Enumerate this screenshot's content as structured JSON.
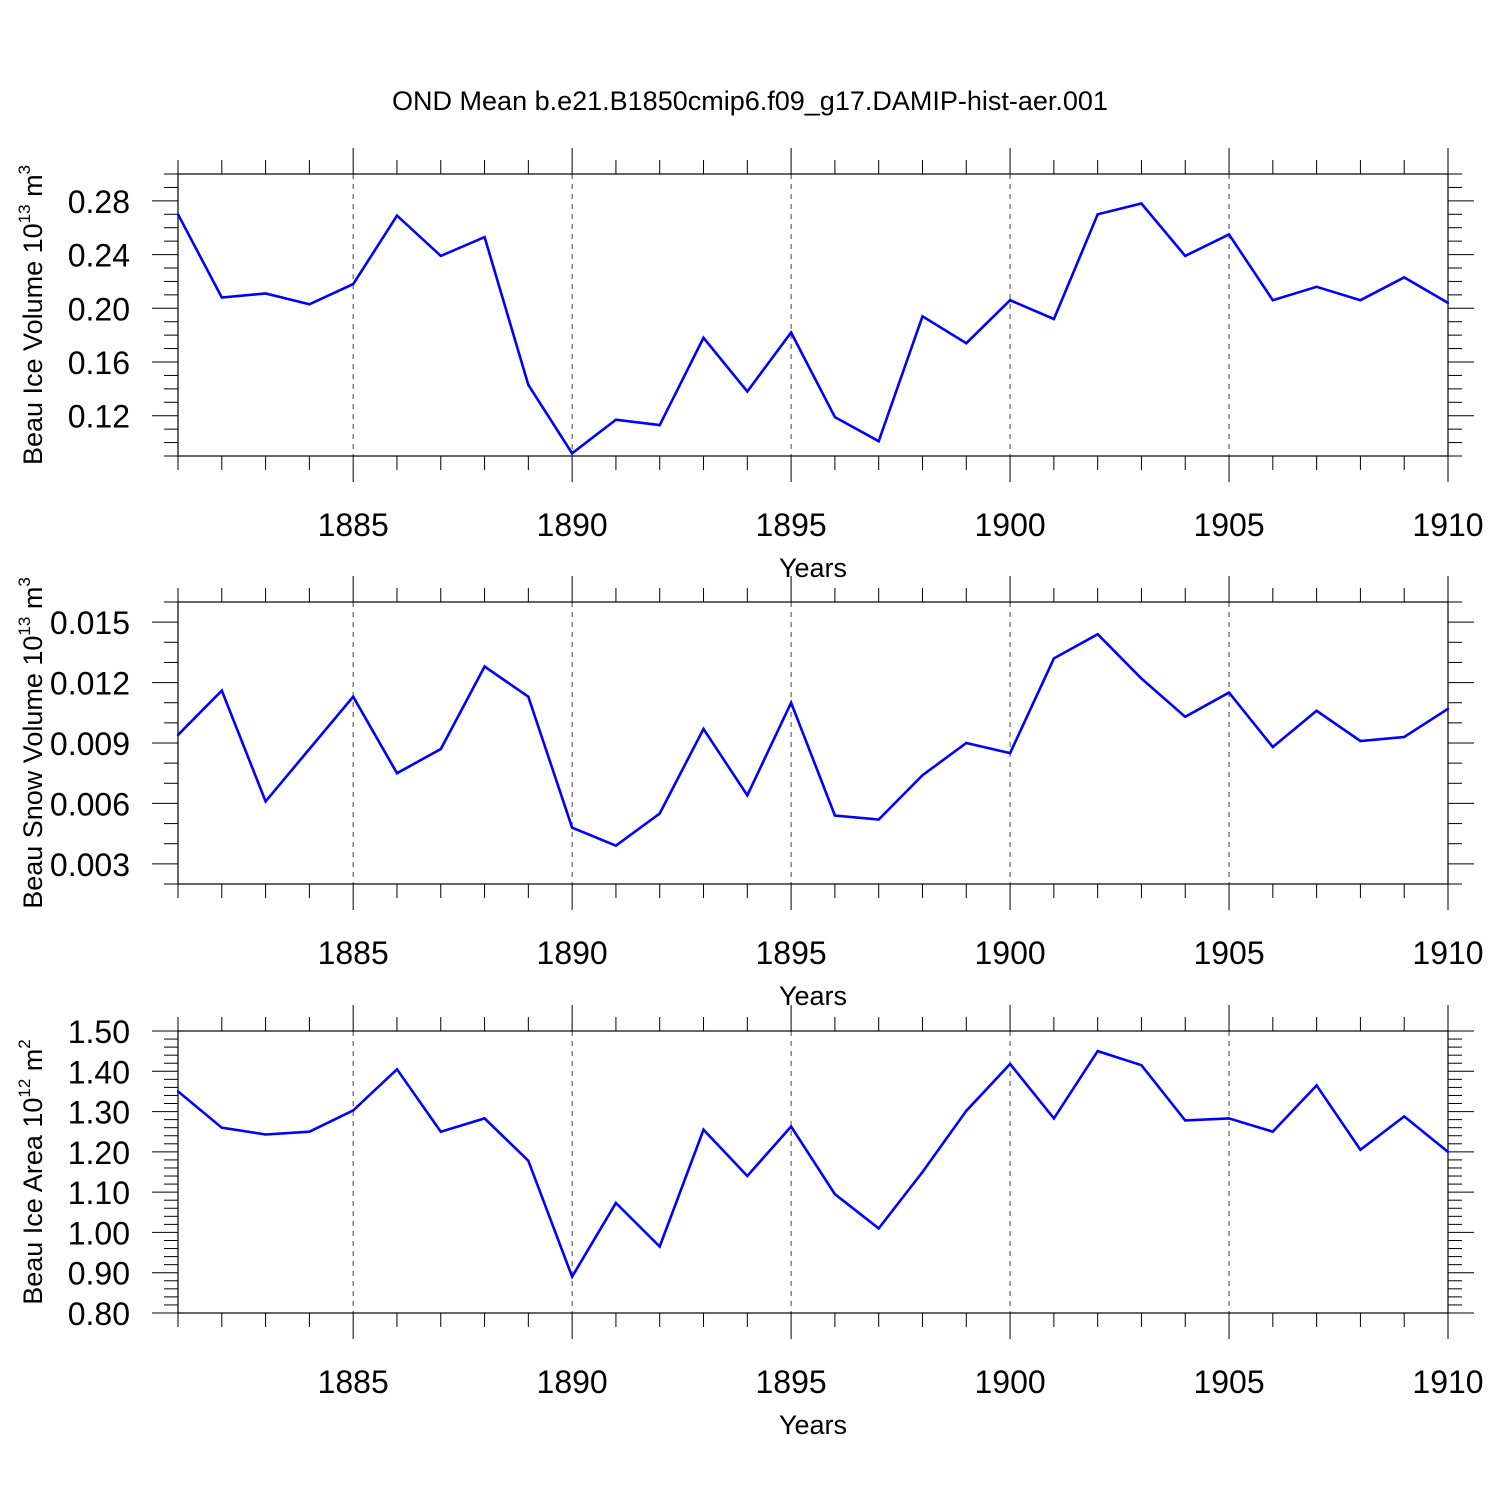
{
  "figure": {
    "title": "OND Mean b.e21.B1850cmip6.f09_g17.DAMIP-hist-aer.001"
  },
  "chart_data": [
    {
      "type": "line",
      "title": "",
      "xlabel": "Years",
      "ylabel": {
        "text": "Beau Ice Volume 10",
        "exp": "13",
        "unit": " m",
        "unit_exp": "3"
      },
      "xlim": [
        1881,
        1910
      ],
      "ylim": [
        0.09,
        0.3
      ],
      "xticks": [
        1885,
        1890,
        1895,
        1900,
        1905,
        1910
      ],
      "yticks": [
        0.12,
        0.16,
        0.2,
        0.24,
        0.28
      ],
      "ytick_labels": [
        "0.12",
        "0.16",
        "0.20",
        "0.24",
        "0.28"
      ],
      "y_minor_step": 0.01,
      "grid": "vertical dashed at major x ticks",
      "line_color": "#0000ff",
      "series": [
        {
          "x": [
            1881,
            1882,
            1883,
            1884,
            1885,
            1886,
            1887,
            1888,
            1889,
            1890,
            1891,
            1892,
            1893,
            1894,
            1895,
            1896,
            1897,
            1898,
            1899,
            1900,
            1901,
            1902,
            1903,
            1904,
            1905,
            1906,
            1907,
            1908,
            1909,
            1910
          ],
          "values": [
            0.27,
            0.208,
            0.211,
            0.203,
            0.218,
            0.269,
            0.239,
            0.253,
            0.143,
            0.092,
            0.117,
            0.113,
            0.178,
            0.138,
            0.182,
            0.119,
            0.101,
            0.194,
            0.174,
            0.206,
            0.192,
            0.27,
            0.278,
            0.239,
            0.255,
            0.206,
            0.216,
            0.206,
            0.223,
            0.204
          ]
        }
      ]
    },
    {
      "type": "line",
      "title": "",
      "xlabel": "Years",
      "ylabel": {
        "text": "Beau Snow Volume 10",
        "exp": "13",
        "unit": " m",
        "unit_exp": "3"
      },
      "xlim": [
        1881,
        1910
      ],
      "ylim": [
        0.002,
        0.016
      ],
      "xticks": [
        1885,
        1890,
        1895,
        1900,
        1905,
        1910
      ],
      "yticks": [
        0.003,
        0.006,
        0.009,
        0.012,
        0.015
      ],
      "ytick_labels": [
        "0.003",
        "0.006",
        "0.009",
        "0.012",
        "0.015"
      ],
      "y_minor_step": 0.001,
      "grid": "vertical dashed at major x ticks",
      "line_color": "#0000ff",
      "series": [
        {
          "x": [
            1881,
            1882,
            1883,
            1884,
            1885,
            1886,
            1887,
            1888,
            1889,
            1890,
            1891,
            1892,
            1893,
            1894,
            1895,
            1896,
            1897,
            1898,
            1899,
            1900,
            1901,
            1902,
            1903,
            1904,
            1905,
            1906,
            1907,
            1908,
            1909,
            1910
          ],
          "values": [
            0.0094,
            0.0116,
            0.0061,
            0.0087,
            0.0113,
            0.0075,
            0.0087,
            0.0128,
            0.0113,
            0.0048,
            0.0039,
            0.0055,
            0.0097,
            0.0064,
            0.011,
            0.0054,
            0.0052,
            0.0074,
            0.009,
            0.0085,
            0.0132,
            0.0144,
            0.0122,
            0.0103,
            0.0115,
            0.0088,
            0.0106,
            0.0091,
            0.0093,
            0.0107
          ]
        }
      ]
    },
    {
      "type": "line",
      "title": "",
      "xlabel": "Years",
      "ylabel": {
        "text": "Beau Ice Area 10",
        "exp": "12",
        "unit": " m",
        "unit_exp": "2"
      },
      "xlim": [
        1881,
        1910
      ],
      "ylim": [
        0.8,
        1.5
      ],
      "xticks": [
        1885,
        1890,
        1895,
        1900,
        1905,
        1910
      ],
      "yticks": [
        0.8,
        0.9,
        1.0,
        1.1,
        1.2,
        1.3,
        1.4,
        1.5
      ],
      "ytick_labels": [
        "0.80",
        "0.90",
        "1.00",
        "1.10",
        "1.20",
        "1.30",
        "1.40",
        "1.50"
      ],
      "y_minor_step": 0.02,
      "grid": "vertical dashed at major x ticks",
      "line_color": "#0000ff",
      "series": [
        {
          "x": [
            1881,
            1882,
            1883,
            1884,
            1885,
            1886,
            1887,
            1888,
            1889,
            1890,
            1891,
            1892,
            1893,
            1894,
            1895,
            1896,
            1897,
            1898,
            1899,
            1900,
            1901,
            1902,
            1903,
            1904,
            1905,
            1906,
            1907,
            1908,
            1909,
            1910
          ],
          "values": [
            1.35,
            1.26,
            1.243,
            1.25,
            1.303,
            1.405,
            1.25,
            1.283,
            1.178,
            0.89,
            1.073,
            0.965,
            1.255,
            1.14,
            1.263,
            1.095,
            1.01,
            1.15,
            1.302,
            1.418,
            1.283,
            1.45,
            1.415,
            1.278,
            1.283,
            1.25,
            1.365,
            1.205,
            1.288,
            1.2
          ]
        }
      ]
    }
  ]
}
